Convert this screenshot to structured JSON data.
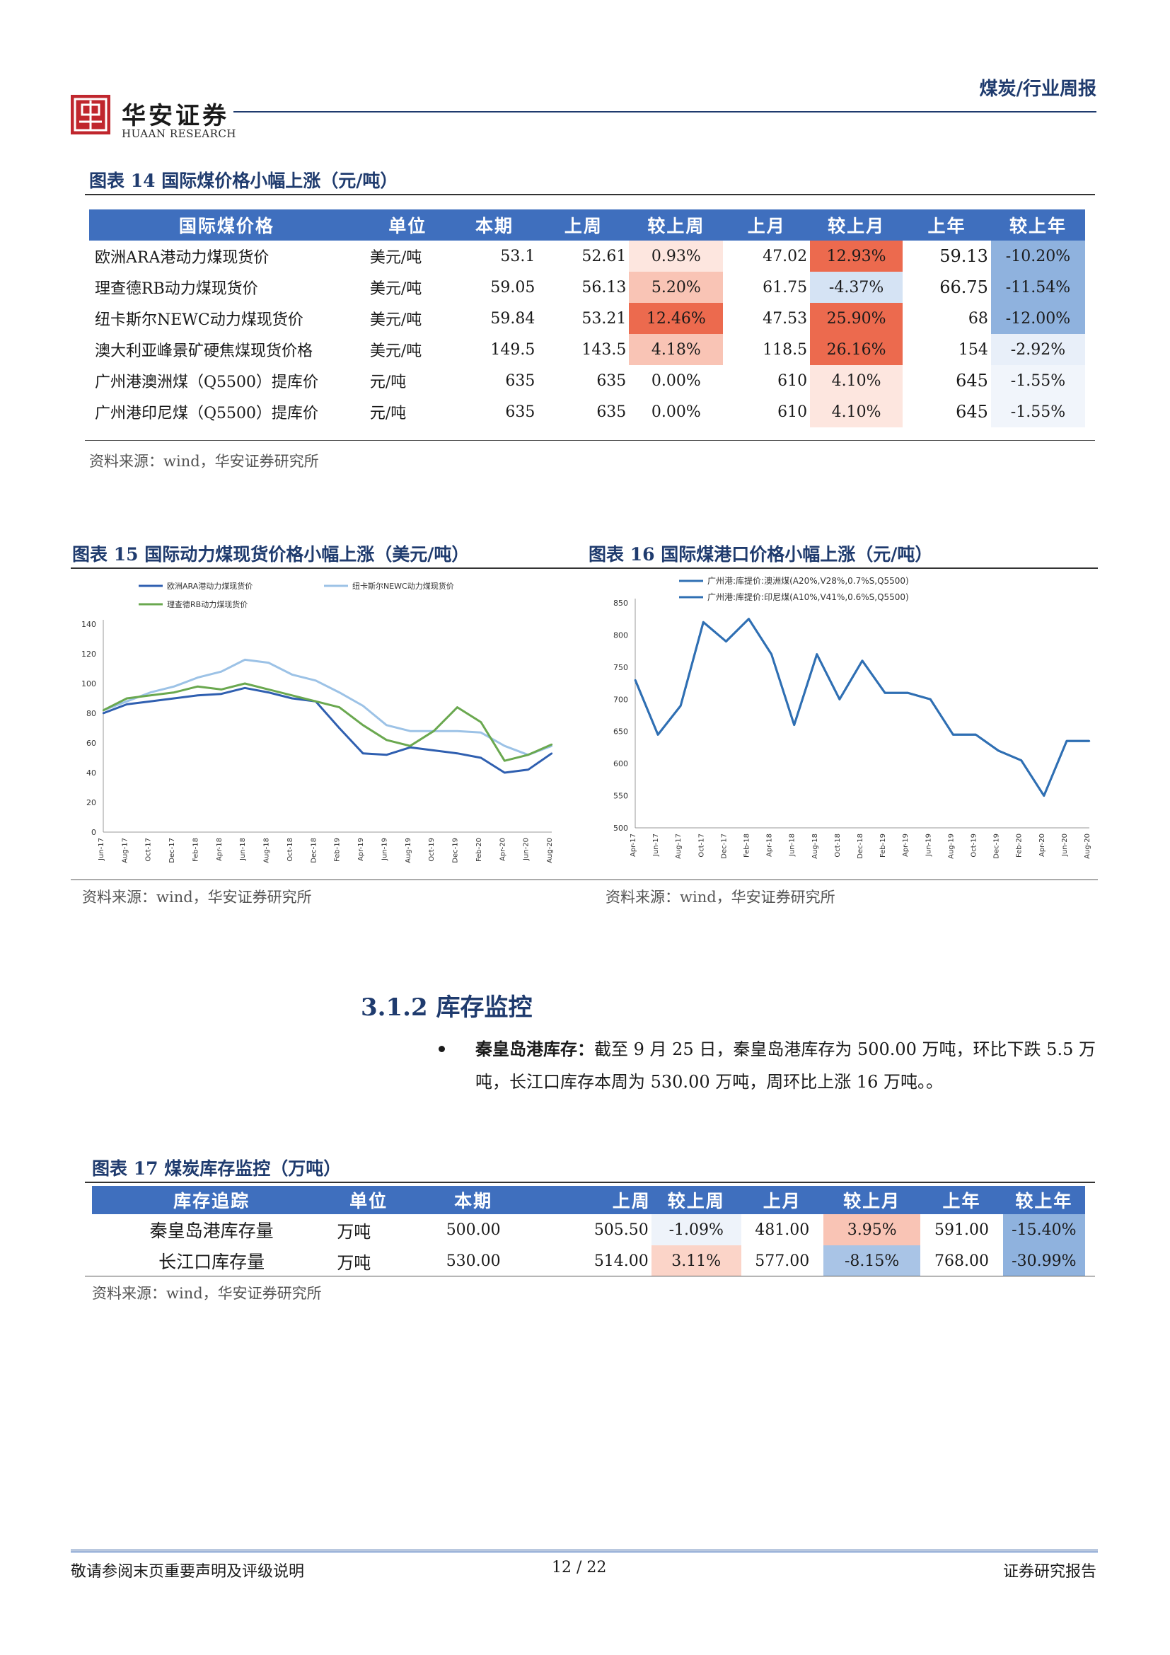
{
  "header": {
    "logo_cn": "华安证券",
    "logo_en": "HUAAN RESEARCH",
    "report_type": "煤炭/行业周报"
  },
  "fig14": {
    "title": "图表 14 国际煤价格小幅上涨（元/吨）",
    "columns": [
      "国际煤价格",
      "单位",
      "本期",
      "上周",
      "较上周",
      "上月",
      "较上月",
      "上年",
      "较上年"
    ],
    "rows": [
      {
        "name": "欧洲ARA港动力煤现货价",
        "unit": "美元/吨",
        "cur": "53.1",
        "lw": "52.61",
        "dw": "0.93%",
        "lm": "47.02",
        "dm": "12.93%",
        "ly": "59.13",
        "dy": "-10.20%"
      },
      {
        "name": "理查德RB动力煤现货价",
        "unit": "美元/吨",
        "cur": "59.05",
        "lw": "56.13",
        "dw": "5.20%",
        "lm": "61.75",
        "dm": "-4.37%",
        "ly": "66.75",
        "dy": "-11.54%"
      },
      {
        "name": "纽卡斯尔NEWC动力煤现货价",
        "unit": "美元/吨",
        "cur": "59.84",
        "lw": "53.21",
        "dw": "12.46%",
        "lm": "47.53",
        "dm": "25.90%",
        "ly": "68",
        "dy": "-12.00%"
      },
      {
        "name": "澳大利亚峰景矿硬焦煤现货价格",
        "unit": "美元/吨",
        "cur": "149.5",
        "lw": "143.5",
        "dw": "4.18%",
        "lm": "118.5",
        "dm": "26.16%",
        "ly": "154",
        "dy": "-2.92%"
      },
      {
        "name": "广州港澳洲煤（Q5500）提库价",
        "unit": "元/吨",
        "cur": "635",
        "lw": "635",
        "dw": "0.00%",
        "lm": "610",
        "dm": "4.10%",
        "ly": "645",
        "dy": "-1.55%"
      },
      {
        "name": "广州港印尼煤（Q5500）提库价",
        "unit": "元/吨",
        "cur": "635",
        "lw": "635",
        "dw": "0.00%",
        "lm": "610",
        "dm": "4.10%",
        "ly": "645",
        "dy": "-1.55%"
      }
    ],
    "source": "资料来源：wind，华安证券研究所"
  },
  "fig15": {
    "title": "图表 15 国际动力煤现货价格小幅上涨（美元/吨）",
    "source": "资料来源：wind，华安证券研究所"
  },
  "fig16": {
    "title": "图表 16 国际煤港口价格小幅上涨（元/吨）",
    "source": "资料来源：wind，华安证券研究所"
  },
  "chart_data": [
    {
      "type": "line",
      "x": [
        "Jun-17",
        "Aug-17",
        "Oct-17",
        "Dec-17",
        "Feb-18",
        "Apr-18",
        "Jun-18",
        "Aug-18",
        "Oct-18",
        "Dec-18",
        "Feb-19",
        "Apr-19",
        "Jun-19",
        "Aug-19",
        "Oct-19",
        "Dec-19",
        "Feb-20",
        "Apr-20",
        "Jun-20",
        "Aug-20"
      ],
      "series": [
        {
          "name": "欧洲ARA港动力煤现货价",
          "color": "#2f5fb0",
          "values": [
            80,
            86,
            88,
            90,
            92,
            93,
            97,
            94,
            90,
            88,
            70,
            53,
            52,
            57,
            55,
            53,
            50,
            40,
            42,
            53
          ]
        },
        {
          "name": "纽卡斯尔NEWC动力煤现货价",
          "color": "#9cc2e6",
          "values": [
            82,
            88,
            94,
            98,
            104,
            108,
            116,
            114,
            106,
            102,
            94,
            85,
            72,
            68,
            68,
            68,
            67,
            58,
            52,
            58
          ]
        },
        {
          "name": "理查德RB动力煤现货价",
          "color": "#6aa84f",
          "values": [
            82,
            90,
            92,
            94,
            98,
            96,
            100,
            96,
            92,
            88,
            84,
            72,
            62,
            58,
            68,
            84,
            74,
            48,
            52,
            59
          ]
        }
      ],
      "yticks": [
        "0",
        "20",
        "40",
        "60",
        "80",
        "100",
        "120",
        "140"
      ],
      "ylim": [
        0,
        140
      ],
      "legend": "top-left"
    },
    {
      "type": "line",
      "x": [
        "Apr-17",
        "Jun-17",
        "Aug-17",
        "Oct-17",
        "Dec-17",
        "Feb-18",
        "Apr-18",
        "Jun-18",
        "Aug-18",
        "Oct-18",
        "Dec-18",
        "Feb-19",
        "Apr-19",
        "Jun-19",
        "Aug-19",
        "Oct-19",
        "Dec-19",
        "Feb-20",
        "Apr-20",
        "Jun-20",
        "Aug-20"
      ],
      "series": [
        {
          "name": "广州港:库提价:澳洲煤(A20%,V28%,0.7%S,Q5500)",
          "color": "#2f6fb3",
          "values": [
            730,
            645,
            690,
            820,
            790,
            825,
            770,
            660,
            770,
            700,
            760,
            710,
            710,
            700,
            645,
            645,
            620,
            605,
            550,
            635,
            635
          ]
        },
        {
          "name": "广州港:库提价:印尼煤(A10%,V41%,0.6%S,Q5500)",
          "color": "#2f6fb3",
          "values": [
            730,
            645,
            690,
            820,
            790,
            825,
            770,
            660,
            770,
            700,
            760,
            710,
            710,
            700,
            645,
            645,
            620,
            605,
            550,
            635,
            635
          ]
        }
      ],
      "yticks": [
        "500",
        "550",
        "600",
        "650",
        "700",
        "750",
        "800",
        "850"
      ],
      "ylim": [
        500,
        850
      ],
      "legend": "top-left"
    }
  ],
  "section": {
    "heading": "3.1.2  库存监控",
    "bullet_bold": "秦皇岛港库存：",
    "bullet_text": "截至 9 月 25 日，秦皇岛港库存为 500.00 万吨，环比下跌 5.5 万吨，长江口库存本周为 530.00 万吨，周环比上涨 16 万吨。。"
  },
  "fig17": {
    "title": "图表 17 煤炭库存监控（万吨）",
    "columns": [
      "库存追踪",
      "单位",
      "本期",
      "上周",
      "较上周",
      "上月",
      "较上月",
      "上年",
      "较上年"
    ],
    "rows": [
      {
        "name": "秦皇岛港库存量",
        "unit": "万吨",
        "cur": "500.00",
        "lw": "505.50",
        "dw": "-1.09%",
        "lm": "481.00",
        "dm": "3.95%",
        "ly": "591.00",
        "dy": "-15.40%"
      },
      {
        "name": "长江口库存量",
        "unit": "万吨",
        "cur": "530.00",
        "lw": "514.00",
        "dw": "3.11%",
        "lm": "577.00",
        "dm": "-8.15%",
        "ly": "768.00",
        "dy": "-30.99%"
      }
    ],
    "source": "资料来源：wind，华安证券研究所"
  },
  "footer": {
    "disclaimer": "敬请参阅末页重要声明及评级说明",
    "page": "12 / 22",
    "label": "证券研究报告"
  },
  "colors": {
    "header_blue": "#3f6fbe",
    "title_blue": "#1f3b6e",
    "strong_red": "#ec6a4e",
    "light_red": "#f9c4b5",
    "pale_red": "#fde6df",
    "strong_blue": "#8fb2de",
    "light_blue": "#c9dbf0",
    "pale_blue": "#e8eff9"
  }
}
